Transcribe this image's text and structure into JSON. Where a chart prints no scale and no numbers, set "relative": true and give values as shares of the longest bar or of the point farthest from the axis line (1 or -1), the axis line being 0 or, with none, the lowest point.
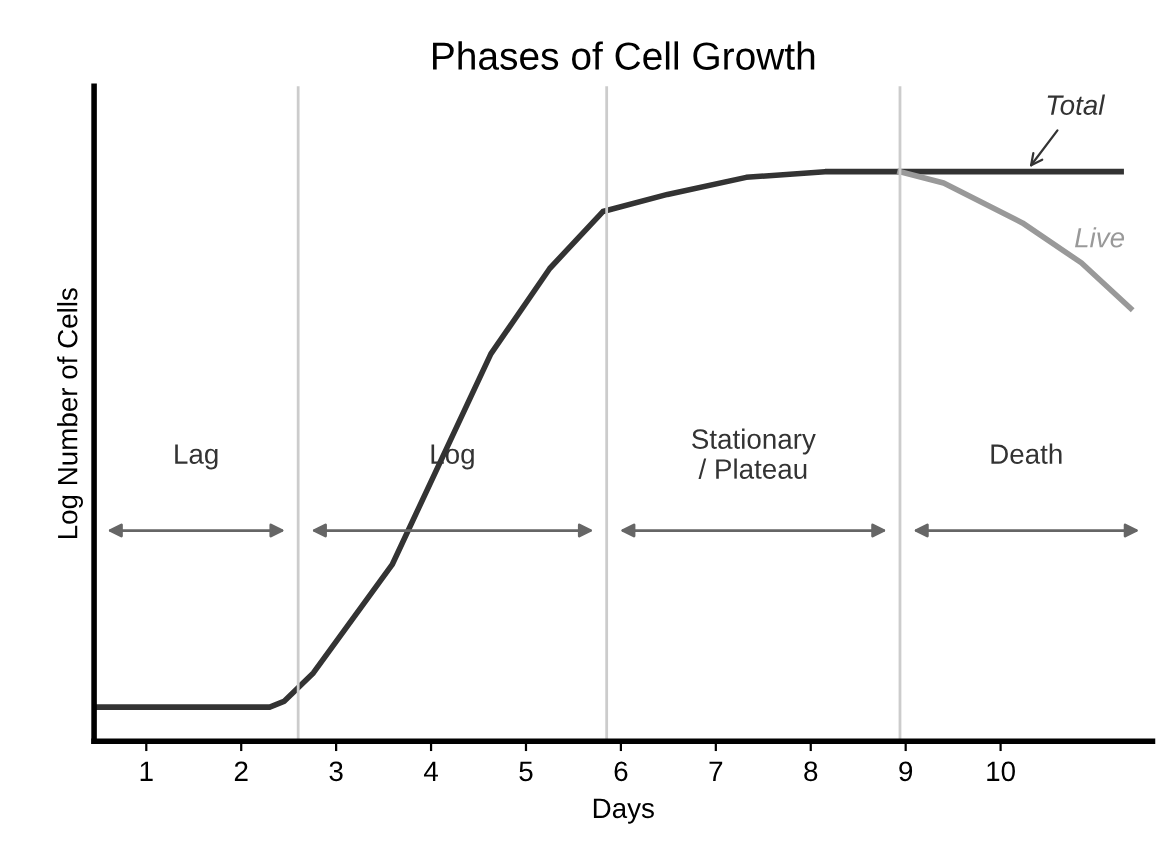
{
  "chart_data": {
    "type": "line",
    "title": "Phases of Cell Growth",
    "xlabel": "Days",
    "ylabel": "Log Number of Cells",
    "relative": true,
    "xlim": [
      0.45,
      11.6
    ],
    "xticks": [
      1,
      2,
      3,
      4,
      5,
      6,
      7,
      8,
      9,
      10
    ],
    "grid": false,
    "legend": false,
    "marker": "none",
    "line_style": "solid",
    "series": [
      {
        "name": "Total",
        "color": "#333333",
        "x": [
          0.48,
          2.3,
          2.45,
          2.76,
          3.59,
          4.63,
          5.25,
          5.81,
          6.49,
          7.32,
          8.15,
          8.94,
          11.27
        ],
        "values": [
          0.06,
          0.06,
          0.07,
          0.12,
          0.31,
          0.68,
          0.83,
          0.93,
          0.96,
          0.99,
          1.0,
          1.0,
          1.0
        ]
      },
      {
        "name": "Live",
        "color": "#999999",
        "x": [
          8.94,
          9.4,
          10.23,
          10.85,
          11.37
        ],
        "values": [
          1.0,
          0.98,
          0.91,
          0.84,
          0.76
        ]
      }
    ],
    "ref_lines": [
      {
        "axis": "x",
        "value": 2.6,
        "color": "#cccccc"
      },
      {
        "axis": "x",
        "value": 5.85,
        "color": "#cccccc"
      },
      {
        "axis": "x",
        "value": 8.94,
        "color": "#cccccc"
      }
    ],
    "annotations": [
      "Lag",
      "Log",
      "Stationary\n/ Plateau",
      "Death"
    ]
  }
}
